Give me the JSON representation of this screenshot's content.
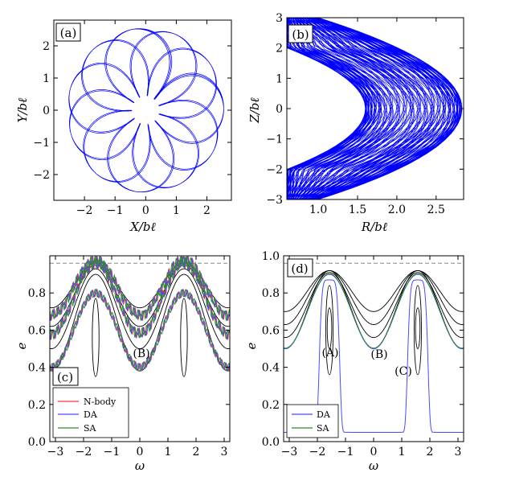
{
  "chart_data": [
    {
      "type": "line",
      "title": "",
      "panel_label": "(a)",
      "xlabel": "X/bℓ",
      "ylabel": "Y/bℓ",
      "xlim": [
        -3.0,
        2.8
      ],
      "ylim": [
        -2.8,
        2.8
      ],
      "xticks": [
        -2,
        -1,
        0,
        1,
        2
      ],
      "yticks": [
        -2,
        -1,
        0,
        1,
        2
      ],
      "series": [
        {
          "name": "orbit",
          "color": "#0000ff",
          "kind": "rosette",
          "r_inner": 0.45,
          "r_outer": 2.55,
          "loops": 23
        }
      ]
    },
    {
      "type": "line",
      "title": "",
      "panel_label": "(b)",
      "xlabel": "R/bℓ",
      "ylabel": "Z/bℓ",
      "xlim": [
        0.6,
        2.85
      ],
      "ylim": [
        -3,
        3
      ],
      "xticks": [
        1.0,
        1.5,
        2.0,
        2.5
      ],
      "yticks": [
        -3,
        -2,
        -1,
        0,
        1,
        2,
        3
      ],
      "series": [
        {
          "name": "meridional orbit",
          "color": "#0000ff",
          "kind": "arc-band",
          "inner_R_at_zero": 1.6,
          "outer_R_at_zero": 2.83,
          "z_max": 3
        }
      ]
    },
    {
      "type": "line",
      "title": "",
      "panel_label": "(c)",
      "xlabel": "ω",
      "ylabel": "e",
      "xlim": [
        -3.2,
        3.2
      ],
      "ylim": [
        0.0,
        1.0
      ],
      "xticks": [
        -3,
        -2,
        -1,
        0,
        1,
        2,
        3
      ],
      "yticks": [
        0.0,
        0.2,
        0.4,
        0.6,
        0.8
      ],
      "dashed_line": 0.96,
      "annotations": [
        {
          "text": "(B)",
          "x": 0.1,
          "y": 0.42
        }
      ],
      "legend": {
        "position": "lower-left",
        "entries": [
          "N-body",
          "DA",
          "SA"
        ]
      },
      "series": [
        {
          "name": "N-body",
          "color": "#ff3333"
        },
        {
          "name": "DA",
          "color": "#4a4aff"
        },
        {
          "name": "SA",
          "color": "#2e8b2e"
        }
      ]
    },
    {
      "type": "line",
      "title": "",
      "panel_label": "(d)",
      "xlabel": "ω",
      "ylabel": "e",
      "xlim": [
        -3.2,
        3.2
      ],
      "ylim": [
        0.0,
        1.0
      ],
      "xticks": [
        -3,
        -2,
        -1,
        0,
        1,
        2,
        3
      ],
      "yticks": [
        0.0,
        0.2,
        0.4,
        0.6,
        0.8,
        1.0
      ],
      "dashed_line": 0.96,
      "annotations": [
        {
          "text": "(A)",
          "x": -1.65,
          "y": 0.5
        },
        {
          "text": "(B)",
          "x": 0.05,
          "y": 0.48
        },
        {
          "text": "(C)",
          "x": 1.0,
          "y": 0.39
        }
      ],
      "legend": {
        "position": "lower-left",
        "entries": [
          "DA",
          "SA"
        ]
      },
      "series": [
        {
          "name": "DA",
          "color": "#4a4aff"
        },
        {
          "name": "SA",
          "color": "#2e8b2e"
        }
      ]
    }
  ]
}
